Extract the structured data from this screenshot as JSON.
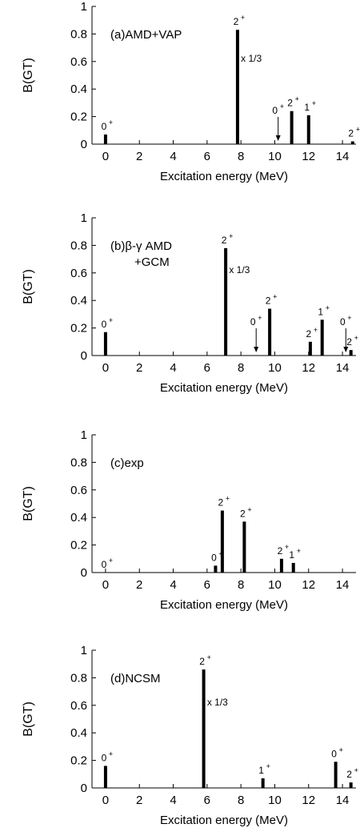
{
  "chart_data": [
    {
      "type": "bar",
      "panel_label": "(a)AMD+VAP",
      "xlabel": "Excitation energy (MeV)",
      "ylabel": "B(GT)",
      "xlim": [
        -0.8,
        14.8
      ],
      "ylim": [
        0,
        1
      ],
      "x_ticks": [
        "0",
        "2",
        "4",
        "6",
        "8",
        "10",
        "12",
        "14"
      ],
      "y_ticks": [
        "0",
        "0.2",
        "0.4",
        "0.6",
        "0.8",
        "1"
      ],
      "bars": [
        {
          "x": 0.0,
          "value": 0.07,
          "label": "0",
          "sup": "+"
        },
        {
          "x": 7.8,
          "value": 0.83,
          "label": "2",
          "sup": "+"
        },
        {
          "x": 11.0,
          "value": 0.24,
          "label": "2",
          "sup": "+"
        },
        {
          "x": 12.0,
          "value": 0.21,
          "label": "1",
          "sup": "+"
        },
        {
          "x": 14.6,
          "value": 0.02,
          "label": "2",
          "sup": "+"
        }
      ],
      "arrows": [
        {
          "x": 10.2,
          "label": "0",
          "sup": "+"
        }
      ],
      "annotation": {
        "text": "x 1/3",
        "x": 8.0,
        "y": 0.6
      }
    },
    {
      "type": "bar",
      "panel_label": "(b)β-γ AMD",
      "panel_label_line2": "+GCM",
      "xlabel": "Excitation energy (MeV)",
      "ylabel": "B(GT)",
      "xlim": [
        -0.8,
        14.8
      ],
      "ylim": [
        0,
        1
      ],
      "x_ticks": [
        "0",
        "2",
        "4",
        "6",
        "8",
        "10",
        "12",
        "14"
      ],
      "y_ticks": [
        "0",
        "0.2",
        "0.4",
        "0.6",
        "0.8",
        "1"
      ],
      "bars": [
        {
          "x": 0.0,
          "value": 0.17,
          "label": "0",
          "sup": "+"
        },
        {
          "x": 7.1,
          "value": 0.78,
          "label": "2",
          "sup": "+"
        },
        {
          "x": 9.7,
          "value": 0.34,
          "label": "2",
          "sup": "+"
        },
        {
          "x": 12.1,
          "value": 0.1,
          "label": "2",
          "sup": "+"
        },
        {
          "x": 12.8,
          "value": 0.26,
          "label": "1",
          "sup": "+"
        },
        {
          "x": 14.5,
          "value": 0.04,
          "label": "2",
          "sup": "+"
        }
      ],
      "arrows": [
        {
          "x": 8.9,
          "label": "0",
          "sup": "+"
        },
        {
          "x": 14.2,
          "label": "0",
          "sup": "+"
        }
      ],
      "annotation": {
        "text": "x 1/3",
        "x": 7.3,
        "y": 0.6
      }
    },
    {
      "type": "bar",
      "panel_label": "(c)exp",
      "xlabel": "Excitation energy (MeV)",
      "ylabel": "B(GT)",
      "xlim": [
        -0.8,
        14.8
      ],
      "ylim": [
        0,
        1
      ],
      "x_ticks": [
        "0",
        "2",
        "4",
        "6",
        "8",
        "10",
        "12",
        "14"
      ],
      "y_ticks": [
        "0",
        "0.2",
        "0.4",
        "0.6",
        "0.8",
        "1"
      ],
      "bars": [
        {
          "x": 0.0,
          "value": 0.0,
          "label": "0",
          "sup": "+"
        },
        {
          "x": 6.5,
          "value": 0.05,
          "label": "0",
          "sup": "+"
        },
        {
          "x": 6.9,
          "value": 0.45,
          "label": "2",
          "sup": "+"
        },
        {
          "x": 8.2,
          "value": 0.37,
          "label": "2",
          "sup": "+"
        },
        {
          "x": 10.4,
          "value": 0.1,
          "label": "2",
          "sup": "+"
        },
        {
          "x": 11.1,
          "value": 0.07,
          "label": "1",
          "sup": "+"
        }
      ],
      "arrows": []
    },
    {
      "type": "bar",
      "panel_label": "(d)NCSM",
      "xlabel": "Excitation energy (MeV)",
      "ylabel": "B(GT)",
      "xlim": [
        -0.8,
        14.8
      ],
      "ylim": [
        0,
        1
      ],
      "x_ticks": [
        "0",
        "2",
        "4",
        "6",
        "8",
        "10",
        "12",
        "14"
      ],
      "y_ticks": [
        "0",
        "0.2",
        "0.4",
        "0.6",
        "0.8",
        "1"
      ],
      "bars": [
        {
          "x": 0.0,
          "value": 0.16,
          "label": "0",
          "sup": "+"
        },
        {
          "x": 5.8,
          "value": 0.86,
          "label": "2",
          "sup": "+"
        },
        {
          "x": 9.3,
          "value": 0.07,
          "label": "1",
          "sup": "+"
        },
        {
          "x": 13.6,
          "value": 0.19,
          "label": "0",
          "sup": "+"
        },
        {
          "x": 14.5,
          "value": 0.04,
          "label": "2",
          "sup": "+"
        }
      ],
      "arrows": [],
      "annotation": {
        "text": "x 1/3",
        "x": 6.0,
        "y": 0.6
      }
    }
  ]
}
